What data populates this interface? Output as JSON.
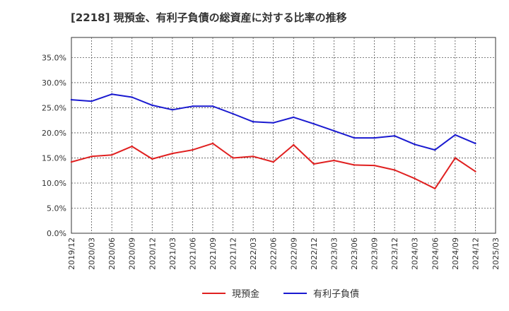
{
  "chart_data": {
    "type": "line",
    "title": "[2218]  現預金、有利子負債の総資産に対する比率の推移",
    "xlabel": "",
    "ylabel": "",
    "ylim": [
      0,
      0.39
    ],
    "yticks": [
      0,
      0.05,
      0.1,
      0.15,
      0.2,
      0.25,
      0.3,
      0.35
    ],
    "ytick_labels": [
      "0.0%",
      "5.0%",
      "10.0%",
      "15.0%",
      "20.0%",
      "25.0%",
      "30.0%",
      "35.0%"
    ],
    "categories": [
      "2019/12",
      "2020/03",
      "2020/06",
      "2020/09",
      "2020/12",
      "2021/03",
      "2021/06",
      "2021/09",
      "2021/12",
      "2022/03",
      "2022/06",
      "2022/09",
      "2022/12",
      "2023/03",
      "2023/06",
      "2023/09",
      "2023/12",
      "2024/03",
      "2024/06",
      "2024/09",
      "2024/12",
      "2025/03"
    ],
    "grid": true,
    "legend_position": "bottom-center",
    "series": [
      {
        "name": "現預金",
        "color": "#e02020",
        "values": [
          0.142,
          0.153,
          0.156,
          0.173,
          0.148,
          0.159,
          0.166,
          0.179,
          0.15,
          0.153,
          0.142,
          0.176,
          0.138,
          0.145,
          0.136,
          0.135,
          0.126,
          0.109,
          0.089,
          0.15,
          0.123,
          null
        ]
      },
      {
        "name": "有利子負債",
        "color": "#1a1ad0",
        "values": [
          0.266,
          0.263,
          0.277,
          0.271,
          0.255,
          0.246,
          0.253,
          0.253,
          0.238,
          0.222,
          0.22,
          0.231,
          0.218,
          0.204,
          0.19,
          0.19,
          0.194,
          0.177,
          0.166,
          0.196,
          0.179,
          null
        ]
      }
    ]
  }
}
